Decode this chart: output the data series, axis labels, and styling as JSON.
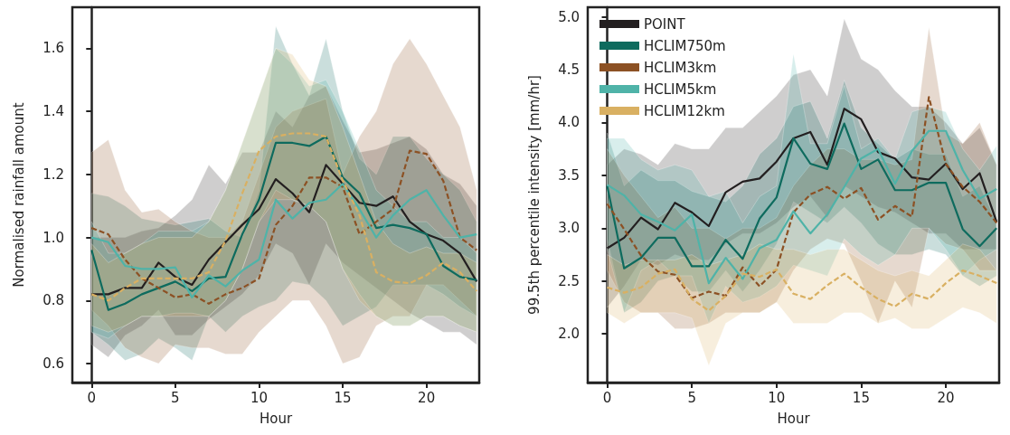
{
  "chart_data": [
    {
      "type": "line",
      "xlabel": "Hour",
      "ylabel": "Normalised rainfall amount",
      "x": [
        0,
        1,
        2,
        3,
        4,
        5,
        6,
        7,
        8,
        9,
        10,
        11,
        12,
        13,
        14,
        15,
        16,
        17,
        18,
        19,
        20,
        21,
        22,
        23
      ],
      "xlim": [
        -1.15,
        23.15
      ],
      "ylim": [
        0.54,
        1.73
      ],
      "xticks": [
        0,
        5,
        10,
        15,
        20
      ],
      "yticks": [
        0.6,
        0.8,
        {
          "value": 1,
          "label": "1.0"
        },
        1.2,
        1.4,
        1.6
      ],
      "legend": false,
      "series": [
        {
          "color": "#231f20",
          "line_style": "solid",
          "values": [
            0.82,
            0.82,
            0.84,
            0.84,
            0.92,
            0.875,
            0.85,
            0.93,
            0.985,
            1.04,
            1.09,
            1.185,
            1.14,
            1.08,
            1.23,
            1.17,
            1.11,
            1.1,
            1.13,
            1.05,
            1.01,
            0.99,
            0.95,
            0.86
          ],
          "lower": [
            0.66,
            0.62,
            0.69,
            0.72,
            0.77,
            0.69,
            0.69,
            0.74,
            0.78,
            0.82,
            0.88,
            0.98,
            0.95,
            0.85,
            0.98,
            0.92,
            0.88,
            0.84,
            0.8,
            0.76,
            0.73,
            0.7,
            0.7,
            0.66
          ],
          "upper": [
            1.0,
            1.0,
            1.0,
            1.02,
            1.03,
            1.07,
            1.12,
            1.23,
            1.17,
            1.27,
            1.27,
            1.4,
            1.35,
            1.45,
            1.48,
            1.37,
            1.27,
            1.28,
            1.3,
            1.32,
            1.28,
            1.2,
            1.17,
            1.1
          ]
        },
        {
          "color": "#0e6b5e",
          "line_style": "solid",
          "values": [
            0.96,
            0.77,
            0.79,
            0.82,
            0.84,
            0.86,
            0.83,
            0.87,
            0.875,
            1.01,
            1.12,
            1.3,
            1.3,
            1.29,
            1.32,
            1.19,
            1.14,
            1.03,
            1.04,
            1.03,
            1.01,
            0.91,
            0.875,
            0.865
          ],
          "lower": [
            0.7,
            0.66,
            0.61,
            0.63,
            0.68,
            0.65,
            0.61,
            0.75,
            0.7,
            0.75,
            0.78,
            0.8,
            0.86,
            0.85,
            0.8,
            0.72,
            0.75,
            0.78,
            0.85,
            0.85,
            0.85,
            0.82,
            0.78,
            0.75
          ],
          "upper": [
            1.14,
            1.13,
            1.1,
            1.06,
            1.05,
            1.04,
            1.05,
            1.06,
            1.02,
            1.0,
            1.15,
            1.67,
            1.55,
            1.45,
            1.63,
            1.4,
            1.25,
            1.2,
            1.32,
            1.32,
            1.25,
            1.2,
            1.15,
            1.05
          ]
        },
        {
          "color": "#8c5124",
          "line_style": "dashed",
          "values": [
            1.03,
            1.01,
            0.93,
            0.87,
            0.84,
            0.81,
            0.82,
            0.79,
            0.82,
            0.84,
            0.87,
            1.04,
            1.1,
            1.19,
            1.19,
            1.16,
            1.01,
            1.05,
            1.09,
            1.275,
            1.265,
            1.18,
            1.0,
            0.96
          ],
          "lower": [
            0.77,
            0.72,
            0.65,
            0.62,
            0.6,
            0.66,
            0.65,
            0.65,
            0.63,
            0.63,
            0.7,
            0.75,
            0.8,
            0.8,
            0.72,
            0.6,
            0.62,
            0.72,
            0.75,
            0.75,
            0.85,
            0.85,
            0.8,
            0.75
          ],
          "upper": [
            1.27,
            1.31,
            1.15,
            1.08,
            1.09,
            1.05,
            1.02,
            1.0,
            1.0,
            1.05,
            1.2,
            1.35,
            1.4,
            1.42,
            1.44,
            1.2,
            1.32,
            1.4,
            1.55,
            1.63,
            1.55,
            1.45,
            1.35,
            1.15
          ]
        },
        {
          "color": "#4fb3a8",
          "line_style": "solid",
          "values": [
            1.0,
            0.985,
            0.91,
            0.9,
            0.9,
            0.905,
            0.81,
            0.88,
            0.845,
            0.895,
            0.93,
            1.12,
            1.06,
            1.11,
            1.12,
            1.17,
            1.09,
            1.0,
            1.07,
            1.12,
            1.15,
            1.07,
            1.0,
            1.01
          ],
          "lower": [
            0.7,
            0.68,
            0.72,
            0.75,
            0.75,
            0.76,
            0.76,
            0.75,
            0.8,
            0.9,
            1.05,
            1.15,
            1.12,
            1.1,
            1.05,
            0.9,
            0.82,
            0.75,
            0.72,
            0.72,
            0.75,
            0.75,
            0.72,
            0.7
          ],
          "upper": [
            1.05,
            0.95,
            0.95,
            0.98,
            1.02,
            1.02,
            1.02,
            1.05,
            1.15,
            1.3,
            1.45,
            1.6,
            1.55,
            1.48,
            1.5,
            1.4,
            1.28,
            1.15,
            1.1,
            1.05,
            1.05,
            1.0,
            1.0,
            0.95
          ]
        },
        {
          "color": "#d9b062",
          "line_style": "dashed",
          "values": [
            0.82,
            0.8,
            0.84,
            0.87,
            0.87,
            0.87,
            0.87,
            0.89,
            0.99,
            1.14,
            1.275,
            1.32,
            1.33,
            1.33,
            1.32,
            1.18,
            1.07,
            0.89,
            0.86,
            0.855,
            0.88,
            0.92,
            0.89,
            0.83
          ],
          "lower": [
            0.72,
            0.7,
            0.72,
            0.75,
            0.75,
            0.75,
            0.75,
            0.75,
            0.8,
            0.9,
            1.05,
            1.12,
            1.12,
            1.1,
            1.05,
            0.9,
            0.8,
            0.75,
            0.72,
            0.72,
            0.75,
            0.75,
            0.72,
            0.7
          ],
          "upper": [
            0.98,
            0.92,
            0.95,
            0.98,
            1.0,
            1.0,
            1.0,
            1.05,
            1.15,
            1.3,
            1.45,
            1.6,
            1.58,
            1.5,
            1.48,
            1.35,
            1.2,
            1.05,
            0.98,
            0.95,
            0.97,
            0.95,
            0.95,
            0.92
          ]
        }
      ]
    },
    {
      "type": "line",
      "xlabel": "Hour",
      "ylabel": "99.5th percentile intensity [mm/hr]",
      "x": [
        0,
        1,
        2,
        3,
        4,
        5,
        6,
        7,
        8,
        9,
        10,
        11,
        12,
        13,
        14,
        15,
        16,
        17,
        18,
        19,
        20,
        21,
        22,
        23
      ],
      "xlim": [
        -1.15,
        23.15
      ],
      "ylim": [
        1.54,
        5.09
      ],
      "xticks": [
        0,
        5,
        10,
        15,
        20
      ],
      "yticks": [
        {
          "value": 2,
          "label": "2.0"
        },
        2.5,
        {
          "value": 3,
          "label": "3.0"
        },
        3.5,
        {
          "value": 4,
          "label": "4.0"
        },
        4.5,
        {
          "value": 5,
          "label": "5.0"
        }
      ],
      "legend": "top left",
      "series": [
        {
          "name": "POINT",
          "color": "#231f20",
          "line_style": "solid",
          "values": [
            2.81,
            2.91,
            3.1,
            2.99,
            3.24,
            3.15,
            3.02,
            3.34,
            3.44,
            3.47,
            3.63,
            3.85,
            3.91,
            3.6,
            4.13,
            4.03,
            3.72,
            3.66,
            3.48,
            3.46,
            3.61,
            3.37,
            3.52,
            3.06
          ],
          "lower": [
            2.25,
            2.45,
            2.7,
            2.65,
            2.75,
            2.7,
            2.7,
            2.85,
            2.95,
            2.95,
            3.05,
            3.2,
            3.3,
            3.1,
            3.4,
            3.3,
            3.2,
            3.15,
            3.05,
            2.95,
            2.95,
            2.8,
            2.8,
            2.8
          ],
          "upper": [
            3.6,
            3.75,
            3.7,
            3.6,
            3.8,
            3.75,
            3.75,
            3.95,
            3.95,
            4.1,
            4.25,
            4.45,
            4.5,
            4.25,
            4.98,
            4.6,
            4.5,
            4.3,
            4.15,
            4.15,
            4.0,
            3.8,
            3.95,
            3.6
          ]
        },
        {
          "name": "HCLIM750m",
          "color": "#0e6b5e",
          "line_style": "solid",
          "values": [
            3.4,
            2.62,
            2.72,
            2.91,
            2.91,
            2.64,
            2.64,
            2.89,
            2.71,
            3.09,
            3.29,
            3.85,
            3.61,
            3.56,
            3.99,
            3.56,
            3.65,
            3.36,
            3.36,
            3.43,
            3.43,
            2.99,
            2.83,
            3.0
          ],
          "lower": [
            2.9,
            2.2,
            2.3,
            2.5,
            2.55,
            2.4,
            2.4,
            2.6,
            2.4,
            2.6,
            2.85,
            3.25,
            3.15,
            3.05,
            3.2,
            3.05,
            2.85,
            2.75,
            2.75,
            2.8,
            2.75,
            2.55,
            2.45,
            2.55
          ],
          "upper": [
            3.9,
            3.4,
            3.55,
            3.45,
            3.45,
            3.35,
            3.3,
            3.25,
            3.4,
            3.7,
            3.85,
            4.15,
            4.2,
            3.85,
            4.4,
            3.95,
            3.8,
            3.65,
            3.75,
            3.7,
            3.7,
            3.3,
            3.4,
            3.05
          ]
        },
        {
          "name": "HCLIM3km",
          "color": "#8c5124",
          "line_style": "dashed",
          "values": [
            3.23,
            2.99,
            2.74,
            2.59,
            2.56,
            2.34,
            2.4,
            2.36,
            2.63,
            2.45,
            2.61,
            3.15,
            3.32,
            3.39,
            3.28,
            3.38,
            3.08,
            3.21,
            3.11,
            4.24,
            3.61,
            3.39,
            3.25,
            3.05
          ],
          "lower": [
            2.6,
            2.3,
            2.2,
            2.2,
            2.05,
            2.05,
            2.1,
            2.2,
            2.2,
            2.2,
            2.3,
            2.6,
            2.8,
            2.9,
            2.85,
            2.5,
            2.1,
            2.5,
            2.25,
            3.0,
            2.85,
            2.8,
            2.6,
            2.6
          ],
          "upper": [
            3.75,
            3.5,
            3.3,
            3.1,
            3.2,
            3.0,
            3.0,
            2.9,
            3.0,
            3.0,
            3.1,
            3.4,
            3.6,
            3.75,
            3.75,
            3.65,
            3.65,
            3.6,
            3.65,
            4.9,
            3.9,
            3.8,
            4.0,
            3.6
          ]
        },
        {
          "name": "HCLIM5km",
          "color": "#4fb3a8",
          "line_style": "solid",
          "values": [
            3.41,
            3.31,
            3.13,
            3.06,
            2.98,
            3.13,
            2.48,
            2.72,
            2.52,
            2.81,
            2.89,
            3.16,
            2.95,
            3.13,
            3.39,
            3.66,
            3.75,
            3.42,
            3.73,
            3.92,
            3.92,
            3.55,
            3.28,
            3.37
          ],
          "lower": [
            2.8,
            2.2,
            2.6,
            2.7,
            2.55,
            2.55,
            2.1,
            2.45,
            2.3,
            2.35,
            2.45,
            2.65,
            2.6,
            2.55,
            2.9,
            2.75,
            2.65,
            2.75,
            3.0,
            3.0,
            2.8,
            2.55,
            2.7,
            2.8
          ],
          "upper": [
            3.85,
            3.85,
            3.65,
            3.55,
            3.6,
            3.55,
            3.3,
            3.35,
            3.05,
            3.3,
            3.4,
            4.65,
            3.8,
            3.8,
            4.35,
            3.75,
            3.85,
            3.65,
            4.1,
            4.15,
            4.1,
            3.75,
            3.55,
            3.78
          ]
        },
        {
          "name": "HCLIM12km",
          "color": "#d9b062",
          "line_style": "dashed",
          "values": [
            2.44,
            2.39,
            2.44,
            2.57,
            2.61,
            2.33,
            2.22,
            2.36,
            2.57,
            2.54,
            2.61,
            2.38,
            2.33,
            2.46,
            2.57,
            2.44,
            2.33,
            2.26,
            2.38,
            2.33,
            2.48,
            2.6,
            2.55,
            2.48
          ],
          "lower": [
            2.2,
            2.1,
            2.2,
            2.2,
            2.2,
            2.15,
            1.7,
            2.1,
            2.2,
            2.2,
            2.3,
            2.1,
            2.1,
            2.1,
            2.2,
            2.2,
            2.1,
            2.15,
            2.05,
            2.05,
            2.15,
            2.25,
            2.2,
            2.1
          ],
          "upper": [
            2.75,
            2.65,
            2.7,
            2.7,
            2.7,
            2.75,
            2.65,
            2.7,
            2.75,
            2.85,
            2.8,
            2.8,
            2.75,
            2.8,
            2.8,
            2.7,
            2.6,
            2.55,
            2.6,
            2.55,
            2.7,
            2.85,
            2.8,
            2.6
          ]
        }
      ]
    }
  ]
}
